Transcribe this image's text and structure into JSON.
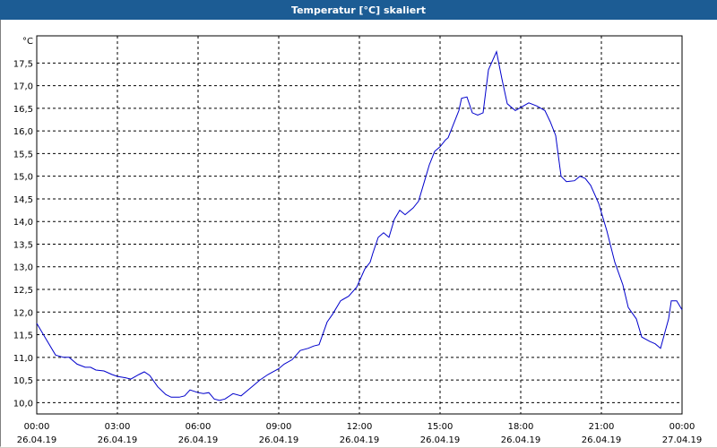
{
  "window": {
    "title": "Temperatur [°C] skaliert"
  },
  "chart_data": {
    "type": "line",
    "title": "Temperatur [°C] skaliert",
    "ylabel": "°C",
    "xlabel": "",
    "ylim": [
      9.75,
      18.1
    ],
    "xlim": [
      0,
      24
    ],
    "grid": true,
    "yticks": [
      "10,0",
      "10,5",
      "11,0",
      "11,5",
      "12,0",
      "12,5",
      "13,0",
      "13,5",
      "14,0",
      "14,5",
      "15,0",
      "15,5",
      "16,0",
      "16,5",
      "17,0",
      "17,5"
    ],
    "ytick_values": [
      10.0,
      10.5,
      11.0,
      11.5,
      12.0,
      12.5,
      13.0,
      13.5,
      14.0,
      14.5,
      15.0,
      15.5,
      16.0,
      16.5,
      17.0,
      17.5
    ],
    "xticks": [
      {
        "x": 0,
        "time": "00:00",
        "date": "26.04.19"
      },
      {
        "x": 3,
        "time": "03:00",
        "date": "26.04.19"
      },
      {
        "x": 6,
        "time": "06:00",
        "date": "26.04.19"
      },
      {
        "x": 9,
        "time": "09:00",
        "date": "26.04.19"
      },
      {
        "x": 12,
        "time": "12:00",
        "date": "26.04.19"
      },
      {
        "x": 15,
        "time": "15:00",
        "date": "26.04.19"
      },
      {
        "x": 18,
        "time": "18:00",
        "date": "26.04.19"
      },
      {
        "x": 21,
        "time": "21:00",
        "date": "26.04.19"
      },
      {
        "x": 24,
        "time": "00:00",
        "date": "27.04.19"
      }
    ],
    "series": [
      {
        "color": "#0000cc",
        "points": [
          [
            0.0,
            11.75
          ],
          [
            0.3,
            11.45
          ],
          [
            0.7,
            11.05
          ],
          [
            1.0,
            11.0
          ],
          [
            1.2,
            11.0
          ],
          [
            1.5,
            10.85
          ],
          [
            1.8,
            10.78
          ],
          [
            2.0,
            10.78
          ],
          [
            2.2,
            10.72
          ],
          [
            2.5,
            10.7
          ],
          [
            2.8,
            10.62
          ],
          [
            3.0,
            10.58
          ],
          [
            3.3,
            10.55
          ],
          [
            3.5,
            10.52
          ],
          [
            3.8,
            10.62
          ],
          [
            4.0,
            10.68
          ],
          [
            4.2,
            10.6
          ],
          [
            4.5,
            10.35
          ],
          [
            4.8,
            10.18
          ],
          [
            5.0,
            10.12
          ],
          [
            5.3,
            10.12
          ],
          [
            5.5,
            10.15
          ],
          [
            5.7,
            10.28
          ],
          [
            6.0,
            10.22
          ],
          [
            6.2,
            10.2
          ],
          [
            6.4,
            10.22
          ],
          [
            6.6,
            10.08
          ],
          [
            6.8,
            10.05
          ],
          [
            7.0,
            10.08
          ],
          [
            7.3,
            10.2
          ],
          [
            7.6,
            10.15
          ],
          [
            7.8,
            10.25
          ],
          [
            8.0,
            10.35
          ],
          [
            8.3,
            10.5
          ],
          [
            8.6,
            10.62
          ],
          [
            9.0,
            10.75
          ],
          [
            9.2,
            10.85
          ],
          [
            9.5,
            10.95
          ],
          [
            9.8,
            11.15
          ],
          [
            10.1,
            11.2
          ],
          [
            10.3,
            11.25
          ],
          [
            10.5,
            11.28
          ],
          [
            10.8,
            11.78
          ],
          [
            11.0,
            11.95
          ],
          [
            11.3,
            12.25
          ],
          [
            11.6,
            12.35
          ],
          [
            11.9,
            12.55
          ],
          [
            12.2,
            12.95
          ],
          [
            12.4,
            13.1
          ],
          [
            12.5,
            13.3
          ],
          [
            12.7,
            13.65
          ],
          [
            12.9,
            13.75
          ],
          [
            13.1,
            13.65
          ],
          [
            13.3,
            14.05
          ],
          [
            13.5,
            14.25
          ],
          [
            13.6,
            14.2
          ],
          [
            13.7,
            14.15
          ],
          [
            14.0,
            14.3
          ],
          [
            14.2,
            14.45
          ],
          [
            14.4,
            14.85
          ],
          [
            14.6,
            15.25
          ],
          [
            14.8,
            15.55
          ],
          [
            15.0,
            15.65
          ],
          [
            15.2,
            15.8
          ],
          [
            15.3,
            15.85
          ],
          [
            15.5,
            16.15
          ],
          [
            15.7,
            16.45
          ],
          [
            15.8,
            16.72
          ],
          [
            16.0,
            16.75
          ],
          [
            16.2,
            16.4
          ],
          [
            16.4,
            16.35
          ],
          [
            16.6,
            16.4
          ],
          [
            16.8,
            17.35
          ],
          [
            17.1,
            17.75
          ],
          [
            17.3,
            17.15
          ],
          [
            17.5,
            16.6
          ],
          [
            17.8,
            16.45
          ],
          [
            18.0,
            16.52
          ],
          [
            18.3,
            16.62
          ],
          [
            18.6,
            16.55
          ],
          [
            18.9,
            16.45
          ],
          [
            19.1,
            16.2
          ],
          [
            19.3,
            15.9
          ],
          [
            19.5,
            15.0
          ],
          [
            19.7,
            14.88
          ],
          [
            20.0,
            14.9
          ],
          [
            20.2,
            15.0
          ],
          [
            20.4,
            14.95
          ],
          [
            20.6,
            14.8
          ],
          [
            20.9,
            14.4
          ],
          [
            21.2,
            13.8
          ],
          [
            21.5,
            13.1
          ],
          [
            21.8,
            12.6
          ],
          [
            22.0,
            12.1
          ],
          [
            22.3,
            11.85
          ],
          [
            22.5,
            11.45
          ],
          [
            22.8,
            11.35
          ],
          [
            23.0,
            11.3
          ],
          [
            23.2,
            11.2
          ],
          [
            23.5,
            11.85
          ],
          [
            23.6,
            12.25
          ],
          [
            23.8,
            12.25
          ],
          [
            24.0,
            12.05
          ]
        ]
      }
    ]
  }
}
